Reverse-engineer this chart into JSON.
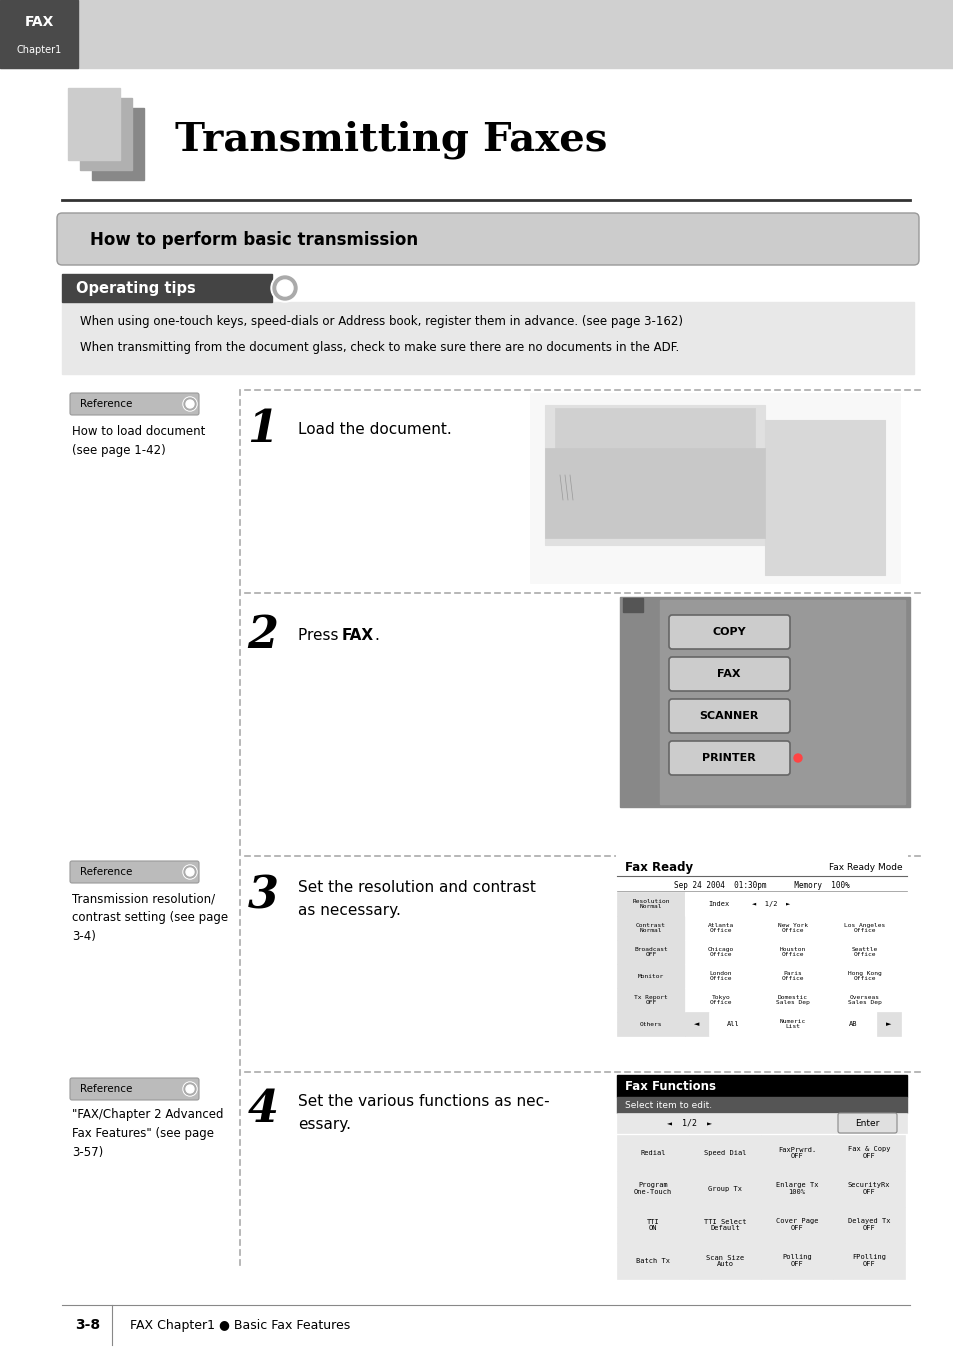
{
  "page_bg": "#ffffff",
  "header_light_bg": "#d0d0d0",
  "header_dark_bg": "#4a4a4a",
  "title": "Transmitting Faxes",
  "section_title": "How to perform basic transmission",
  "operating_tips_text": "Operating tips",
  "tip1": "When using one-touch keys, speed-dials or Address book, register them in advance. (see page 3-162)",
  "tip2": "When transmitting from the document glass, check to make sure there are no documents in the ADF.",
  "step1_text": "Load the document.",
  "step2_text_pre": "Press ",
  "step2_text_bold": "FAX",
  "step2_text_post": ".",
  "step3_text": "Set the resolution and contrast\nas necessary.",
  "step4_text": "Set the various functions as nec-\nessary.",
  "ref1_title": "Reference",
  "ref1_text": "How to load document\n(see page 1-42)",
  "ref2_title": "Reference",
  "ref2_text": "Transmission resolution/\ncontrast setting (see page\n3-4)",
  "ref3_title": "Reference",
  "ref3_text": "\"FAX/Chapter 2 Advanced\nFax Features\" (see page\n3-57)",
  "footer_num": "3-8",
  "footer_text": "FAX Chapter1 ● Basic Fax Features",
  "tips_bg": "#e8e8e8",
  "section_bg": "#cccccc",
  "ref_bg": "#bbbbbb",
  "screen_bg": "#f0f0f0",
  "screen_border": "#888888",
  "fax_ready_header_bg": "#ffffff",
  "fax_func_header_bg": "#000000",
  "fax_func_sub_bg": "#333333",
  "btn_bg": "#dddddd",
  "btn_border": "#888888",
  "dot_color": "#aaaaaa",
  "vline_color": "#aaaaaa",
  "panel_bg": "#888888",
  "panel_btn_bg": "#cccccc"
}
